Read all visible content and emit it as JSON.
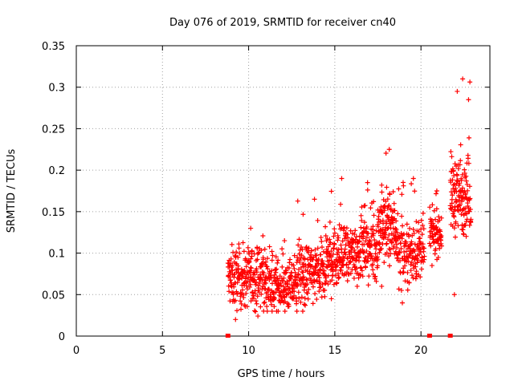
{
  "chart_data": {
    "type": "scatter",
    "title": "Day 076 of 2019, SRMTID for receiver cn40",
    "xlabel": "GPS time / hours",
    "ylabel": "SRMTID / TECUs",
    "xlim": [
      0,
      24
    ],
    "ylim": [
      0,
      0.35
    ],
    "xticks": [
      0,
      5,
      10,
      15,
      20
    ],
    "yticks": [
      0,
      0.05,
      0.1,
      0.15,
      0.2,
      0.25,
      0.3,
      0.35
    ],
    "xtick_labels": [
      "0",
      "5",
      "10",
      "15",
      "20"
    ],
    "ytick_labels": [
      "0",
      "0.05",
      "0.1",
      "0.15",
      "0.2",
      "0.25",
      "0.3",
      "0.35"
    ],
    "grid": true,
    "marker": "+",
    "color": "#ff0000",
    "series": [
      {
        "name": "SRMTID",
        "segments": [
          {
            "x_start": 8.8,
            "x_end": 11.0,
            "y_center": 0.07,
            "y_spread": 0.035,
            "y_min": 0.02,
            "y_max": 0.13,
            "count": 220
          },
          {
            "x_start": 11.0,
            "x_end": 12.8,
            "y_center": 0.06,
            "y_spread": 0.03,
            "y_min": 0.03,
            "y_max": 0.115,
            "count": 180
          },
          {
            "x_start": 12.8,
            "x_end": 14.5,
            "y_center": 0.075,
            "y_spread": 0.035,
            "y_min": 0.03,
            "y_max": 0.165,
            "count": 170
          },
          {
            "x_start": 14.5,
            "x_end": 16.0,
            "y_center": 0.095,
            "y_spread": 0.035,
            "y_min": 0.045,
            "y_max": 0.19,
            "count": 150
          },
          {
            "x_start": 16.0,
            "x_end": 17.5,
            "y_center": 0.105,
            "y_spread": 0.035,
            "y_min": 0.06,
            "y_max": 0.185,
            "count": 150
          },
          {
            "x_start": 17.5,
            "x_end": 18.6,
            "y_center": 0.13,
            "y_spread": 0.045,
            "y_min": 0.06,
            "y_max": 0.225,
            "count": 120
          },
          {
            "x_start": 18.6,
            "x_end": 20.2,
            "y_center": 0.1,
            "y_spread": 0.035,
            "y_min": 0.04,
            "y_max": 0.19,
            "count": 150
          },
          {
            "x_start": 20.5,
            "x_end": 21.2,
            "y_center": 0.125,
            "y_spread": 0.025,
            "y_min": 0.085,
            "y_max": 0.175,
            "count": 70
          },
          {
            "x_start": 21.7,
            "x_end": 22.9,
            "y_center": 0.17,
            "y_spread": 0.045,
            "y_min": 0.05,
            "y_max": 0.31,
            "count": 140
          }
        ],
        "zero_points": [
          8.8,
          20.5,
          21.7
        ]
      }
    ]
  }
}
